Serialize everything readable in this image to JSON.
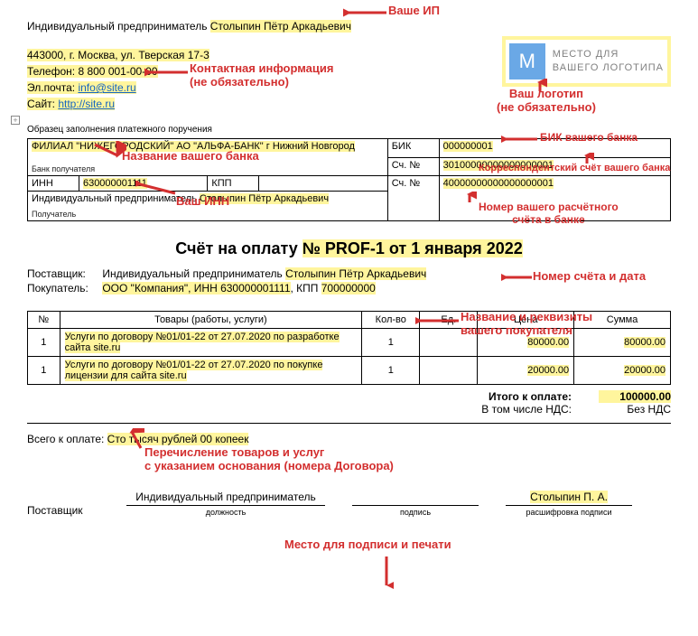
{
  "header": {
    "ip_prefix": "Индивидуальный предприниматель ",
    "ip_name": "Столыпин Пётр Аркадьевич",
    "address": "443000, г. Москва, ул. Тверская 17-3",
    "phone_label": "Телефон: ",
    "phone": "8 800 001-00-00",
    "email_label": "Эл.почта: ",
    "email": "info@site.ru",
    "site_label": "Сайт: ",
    "site": "http://site.ru"
  },
  "logo": {
    "letter": "М",
    "line1": "МЕСТО ДЛЯ",
    "line2": "ВАШЕГО ЛОГОТИПА"
  },
  "sample_caption": "Образец заполнения платежного поручения",
  "plus": "+",
  "bank": {
    "filial": "ФИЛИАЛ \"НИЖЕГОРОДСКИЙ\" АО \"АЛЬФА-БАНК\" г Нижний Новгород",
    "bank_recipient": "Банк получателя",
    "bik_label": "БИК",
    "bik": "000000001",
    "sch_label": "Сч. №",
    "korr": "30100000000000000001",
    "inn_label": "ИНН",
    "inn": "630000001111",
    "kpp_label": "КПП",
    "rs": "40000000000000000001",
    "recipient_prefix": "Индивидуальный предприниматель ",
    "recipient_name": "Столыпин Пётр Аркадьевич",
    "recipient_label": "Получатель"
  },
  "invoice": {
    "title_prefix": "Счёт на оплату ",
    "title_hl": "№ PROF-1 от 1 января 2022"
  },
  "parties": {
    "supplier_label": "Поставщик:",
    "supplier_prefix": "Индивидуальный предприниматель ",
    "supplier_name": "Столыпин Пётр Аркадьевич",
    "buyer_label": "Покупатель:",
    "buyer_prefix": "ООО \"Компания\", ИНН ",
    "buyer_inn": "630000001111",
    "buyer_mid": ", КПП ",
    "buyer_kpp": "700000000"
  },
  "items": {
    "cols": [
      "№",
      "Товары (работы, услуги)",
      "Кол-во",
      "Ед.",
      "Цена",
      "Сумма"
    ],
    "rows": [
      {
        "n": "1",
        "desc_a": "Услуги по договору №01/01-22 от 27.07.2020 по разработке",
        "desc_b": "сайта site.ru",
        "qty": "1",
        "unit": "",
        "price": "80000.00",
        "sum": "80000.00"
      },
      {
        "n": "1",
        "desc_a": "Услуги по договору №01/01-22 от 27.07.2020 по покупке",
        "desc_b": "лицензии для сайта site.ru",
        "qty": "1",
        "unit": "",
        "price": "20000.00",
        "sum": "20000.00"
      }
    ]
  },
  "totals": {
    "itogo_label": "Итого к оплате:",
    "itogo": "100000.00",
    "nds_label": "В том числе НДС:",
    "nds": "Без НДС",
    "words_label": "Всего к оплате: ",
    "words": "Сто тысяч рублей 00 копеек"
  },
  "sig": {
    "supplier": "Поставщик",
    "position": "Индивидуальный предприниматель",
    "position_lbl": "должность",
    "sign_lbl": "подпись",
    "name": "Столыпин П. А.",
    "name_lbl": "расшифровка подписи"
  },
  "ann": {
    "a1": "Ваше ИП",
    "a2": "Контактная информация",
    "a2b": "(не обязательно)",
    "a3": "Ваш логотип",
    "a3b": "(не обязательно)",
    "a4": "Название вашего банка",
    "a5": "БИК вашего банка",
    "a6": "Корреспондентский счёт вашего банка",
    "a7": "Ваш ИНН",
    "a8": "Номер вашего расчётного",
    "a8b": "счёта в банке",
    "a9": "Номер счёта и дата",
    "a10": "Название и реквизиты",
    "a10b": "вашего покупателя",
    "a11": "Перечисление товаров и услуг",
    "a11b": "с указанием основания (номера Договора)",
    "a12": "Место для подписи и печати"
  },
  "colors": {
    "highlight": "#fff59d",
    "red": "#d32f2f",
    "blue": "#1565c0",
    "logo_bg": "#6aa8e6"
  }
}
